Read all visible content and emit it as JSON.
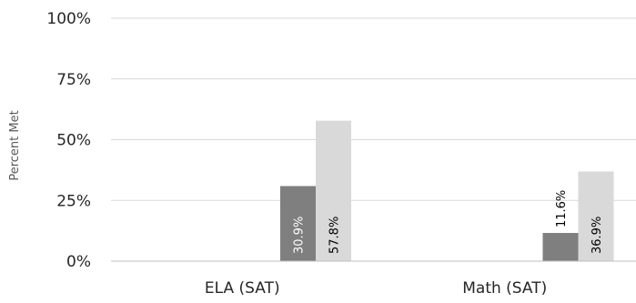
{
  "chart_data": {
    "type": "bar",
    "title": "",
    "xlabel": "",
    "ylabel": "Percent Met",
    "ylim": [
      0,
      100
    ],
    "yticks": [
      "0%",
      "25%",
      "50%",
      "75%",
      "100%"
    ],
    "categories": [
      "ELA (SAT)",
      "Math (SAT)"
    ],
    "series": [
      {
        "values": [
          30.9,
          11.6
        ],
        "labels": [
          "30.9%",
          "11.6%"
        ],
        "color": "#7f7f7f",
        "label_color": "#ffffff"
      },
      {
        "values": [
          57.8,
          36.9
        ],
        "labels": [
          "57.8%",
          "36.9%"
        ],
        "color": "#d9d9d9",
        "label_color": "#000000"
      }
    ],
    "grid": true,
    "legend": "none"
  }
}
